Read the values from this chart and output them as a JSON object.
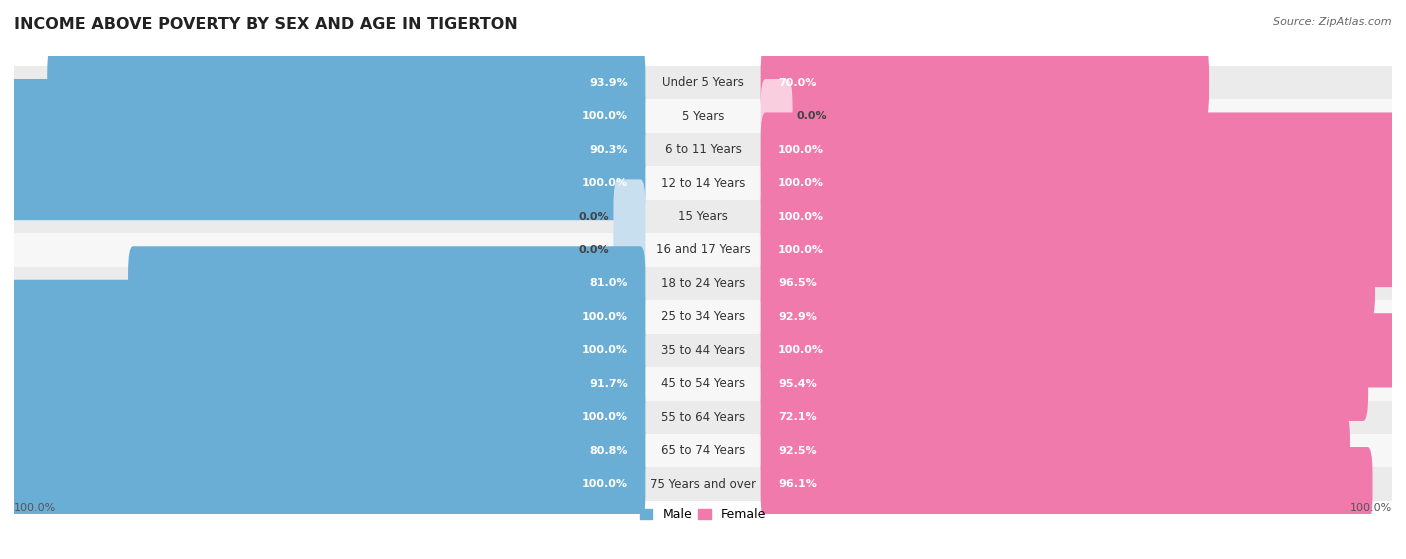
{
  "title": "INCOME ABOVE POVERTY BY SEX AND AGE IN TIGERTON",
  "source": "Source: ZipAtlas.com",
  "categories": [
    "Under 5 Years",
    "5 Years",
    "6 to 11 Years",
    "12 to 14 Years",
    "15 Years",
    "16 and 17 Years",
    "18 to 24 Years",
    "25 to 34 Years",
    "35 to 44 Years",
    "45 to 54 Years",
    "55 to 64 Years",
    "65 to 74 Years",
    "75 Years and over"
  ],
  "male_values": [
    93.9,
    100.0,
    90.3,
    100.0,
    0.0,
    0.0,
    81.0,
    100.0,
    100.0,
    91.7,
    100.0,
    80.8,
    100.0
  ],
  "female_values": [
    70.0,
    0.0,
    100.0,
    100.0,
    100.0,
    100.0,
    96.5,
    92.9,
    100.0,
    95.4,
    72.1,
    92.5,
    96.1
  ],
  "male_color": "#6aaed6",
  "female_color": "#f07aab",
  "male_light_color": "#c8dff0",
  "female_light_color": "#f9cfe0",
  "bg_row_odd": "#ebebeb",
  "bg_row_even": "#f7f7f7",
  "title_fontsize": 11.5,
  "label_fontsize": 8.5,
  "value_fontsize": 8.0,
  "axis_scale": 100.0
}
